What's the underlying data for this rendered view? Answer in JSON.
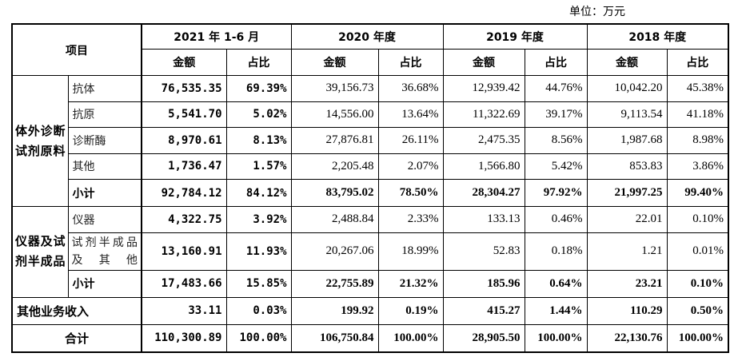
{
  "unit": "单位：万元",
  "header": {
    "item": "项目",
    "periods": [
      "2021 年 1-6 月",
      "2020 年度",
      "2019 年度",
      "2018 年度"
    ],
    "amount": "金额",
    "ratio": "占比"
  },
  "groups": [
    {
      "name": "体外诊断试剂原料",
      "rows": [
        {
          "label": "抗体",
          "v": [
            "76,535.35",
            "69.39%",
            "39,156.73",
            "36.68%",
            "12,939.42",
            "44.76%",
            "10,042.20",
            "45.38%"
          ]
        },
        {
          "label": "抗原",
          "v": [
            "5,541.70",
            "5.02%",
            "14,556.00",
            "13.64%",
            "11,322.69",
            "39.17%",
            "9,113.54",
            "41.18%"
          ]
        },
        {
          "label": "诊断酶",
          "v": [
            "8,970.61",
            "8.13%",
            "27,876.81",
            "26.11%",
            "2,475.35",
            "8.56%",
            "1,987.68",
            "8.98%"
          ]
        },
        {
          "label": "其他",
          "v": [
            "1,736.47",
            "1.57%",
            "2,205.48",
            "2.07%",
            "1,566.80",
            "5.42%",
            "853.83",
            "3.86%"
          ]
        }
      ],
      "subtotal": {
        "label": "小计",
        "v": [
          "92,784.12",
          "84.12%",
          "83,795.02",
          "78.50%",
          "28,304.27",
          "97.92%",
          "21,997.25",
          "99.40%"
        ]
      }
    },
    {
      "name": "仪器及试剂半成品",
      "rows": [
        {
          "label": "仪器",
          "v": [
            "4,322.75",
            "3.92%",
            "2,488.84",
            "2.33%",
            "133.13",
            "0.46%",
            "22.01",
            "0.10%"
          ]
        },
        {
          "label": "试剂半成品及其他",
          "v": [
            "13,160.91",
            "11.93%",
            "20,267.06",
            "18.99%",
            "52.83",
            "0.18%",
            "1.21",
            "0.01%"
          ]
        }
      ],
      "subtotal": {
        "label": "小计",
        "v": [
          "17,483.66",
          "15.85%",
          "22,755.89",
          "21.32%",
          "185.96",
          "0.64%",
          "23.21",
          "0.10%"
        ]
      }
    }
  ],
  "other_income": {
    "label": "其他业务收入",
    "v": [
      "33.11",
      "0.03%",
      "199.92",
      "0.19%",
      "415.27",
      "1.44%",
      "110.29",
      "0.50%"
    ]
  },
  "total": {
    "label": "合计",
    "v": [
      "110,300.89",
      "100.00%",
      "106,750.84",
      "100.00%",
      "28,905.50",
      "100.00%",
      "22,130.76",
      "100.00%"
    ]
  }
}
